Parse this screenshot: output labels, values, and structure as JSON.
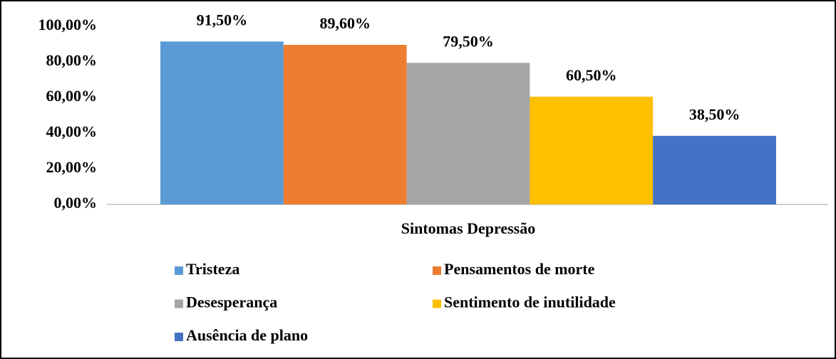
{
  "chart_data": {
    "type": "bar",
    "categories": [
      "Sintomas Depressão"
    ],
    "series": [
      {
        "name": "Tristeza",
        "color": "#5b9bd5",
        "values": [
          91.5
        ],
        "value_labels": [
          "91,50%"
        ]
      },
      {
        "name": "Pensamentos de morte",
        "color": "#ed7d31",
        "values": [
          89.6
        ],
        "value_labels": [
          "89,60%"
        ]
      },
      {
        "name": "Desesperança",
        "color": "#a5a5a5",
        "values": [
          79.5
        ],
        "value_labels": [
          "79,50%"
        ]
      },
      {
        "name": "Sentimento de inutilidade",
        "color": "#ffc000",
        "values": [
          60.5
        ],
        "value_labels": [
          "60,50%"
        ]
      },
      {
        "name": "Ausência de plano",
        "color": "#4472c4",
        "values": [
          38.5
        ],
        "value_labels": [
          "38,50%"
        ]
      }
    ],
    "ylim": [
      0,
      100
    ],
    "yticks": [
      {
        "value": 0,
        "label": "0,00%"
      },
      {
        "value": 20,
        "label": "20,00%"
      },
      {
        "value": 40,
        "label": "40,00%"
      },
      {
        "value": 60,
        "label": "60,00%"
      },
      {
        "value": 80,
        "label": "80,00%"
      },
      {
        "value": 100,
        "label": "100,00%"
      }
    ],
    "grid": false,
    "legend": "bottom"
  }
}
